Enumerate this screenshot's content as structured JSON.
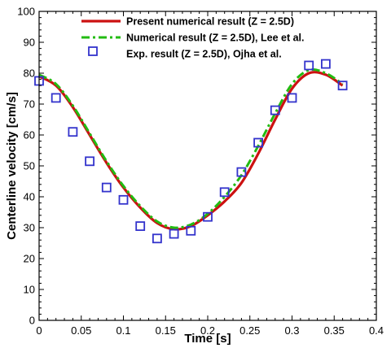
{
  "chart_data": {
    "type": "line",
    "title": "",
    "xlabel": "Time [s]",
    "ylabel": "Centerline velocity [cm/s]",
    "xlim": [
      0,
      0.4
    ],
    "ylim": [
      0,
      100
    ],
    "xticks": [
      0,
      0.05,
      0.1,
      0.15,
      0.2,
      0.25,
      0.3,
      0.35,
      0.4
    ],
    "yticks": [
      0,
      10,
      20,
      30,
      40,
      50,
      60,
      70,
      80,
      90,
      100
    ],
    "grid": false,
    "legend_position": "top-right",
    "series": [
      {
        "name": "Present numerical result (Z = 2.5D)",
        "style": "solid-line",
        "color": "#cc1111",
        "x": [
          0,
          0.02,
          0.04,
          0.06,
          0.08,
          0.1,
          0.12,
          0.14,
          0.16,
          0.18,
          0.2,
          0.22,
          0.24,
          0.26,
          0.28,
          0.3,
          0.32,
          0.34,
          0.36
        ],
        "y": [
          79,
          76,
          69,
          60,
          51,
          43,
          36.5,
          31.5,
          29.5,
          30.5,
          34,
          38.5,
          44.5,
          54,
          65,
          75,
          80,
          79.5,
          76
        ]
      },
      {
        "name": "Numerical result (Z = 2.5D), Lee et al.",
        "style": "dash-dot-line",
        "color": "#22bb11",
        "x": [
          0,
          0.02,
          0.04,
          0.06,
          0.08,
          0.1,
          0.12,
          0.14,
          0.16,
          0.18,
          0.2,
          0.22,
          0.24,
          0.26,
          0.28,
          0.3,
          0.32,
          0.34,
          0.36
        ],
        "y": [
          79.5,
          76.5,
          69.5,
          60.5,
          51.5,
          43.5,
          37,
          32,
          30,
          31,
          34.5,
          40,
          47,
          56.5,
          67,
          76.5,
          81,
          80,
          76.5
        ]
      },
      {
        "name": "Exp. result (Z = 2.5D), Ojha et al.",
        "style": "square-markers",
        "color": "#3333cc",
        "x": [
          0,
          0.02,
          0.04,
          0.06,
          0.08,
          0.1,
          0.12,
          0.14,
          0.16,
          0.18,
          0.2,
          0.22,
          0.24,
          0.26,
          0.28,
          0.3,
          0.32,
          0.34,
          0.36
        ],
        "y": [
          77.5,
          72,
          61,
          51.5,
          43,
          39,
          30.5,
          26.5,
          28,
          29,
          33.5,
          41.5,
          48,
          57.5,
          68,
          72,
          82.5,
          83,
          76
        ]
      }
    ]
  }
}
